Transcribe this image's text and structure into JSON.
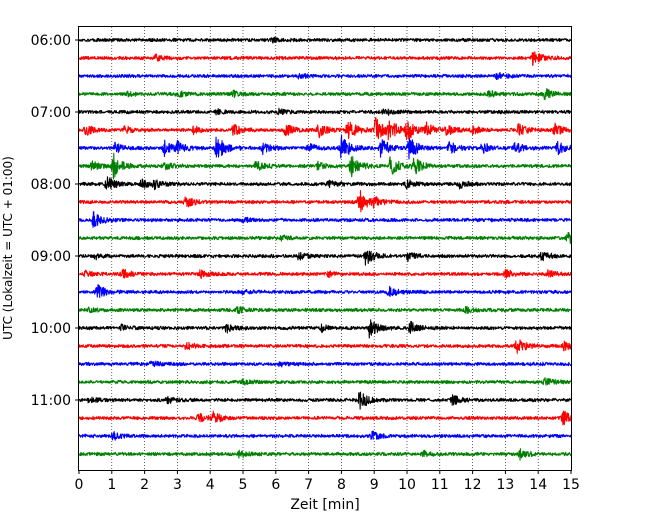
{
  "chart_data": {
    "type": "line",
    "subtype": "seismogram-helicorder",
    "xlabel": "Zeit  [min]",
    "ylabel": "UTC (Lokalzeit = UTC + 01:00)",
    "xlim": [
      0,
      15
    ],
    "x_ticks": [
      "0",
      "1",
      "2",
      "3",
      "4",
      "5",
      "6",
      "7",
      "8",
      "9",
      "10",
      "11",
      "12",
      "13",
      "14",
      "15"
    ],
    "y_ticks": [
      "06:00",
      "07:00",
      "08:00",
      "09:00",
      "10:00",
      "11:00"
    ],
    "grid": "vertical dotted at each minute",
    "trace_interval_minutes": 15,
    "colors": [
      "#000000",
      "#ff0000",
      "#0000ff",
      "#008000"
    ],
    "series": [
      {
        "start": "06:00",
        "color": "#000000",
        "events": [
          {
            "t": 5.9,
            "a": 0.18
          }
        ]
      },
      {
        "start": "06:15",
        "color": "#ff0000",
        "events": [
          {
            "t": 13.85,
            "a": 0.55
          },
          {
            "t": 2.35,
            "a": 0.2
          }
        ]
      },
      {
        "start": "06:30",
        "color": "#0000ff",
        "events": [
          {
            "t": 12.75,
            "a": 0.25
          },
          {
            "t": 6.7,
            "a": 0.15
          }
        ]
      },
      {
        "start": "06:45",
        "color": "#008000",
        "events": [
          {
            "t": 14.2,
            "a": 0.45
          },
          {
            "t": 3.0,
            "a": 0.25
          },
          {
            "t": 4.7,
            "a": 0.25
          },
          {
            "t": 1.5,
            "a": 0.15
          },
          {
            "t": 12.5,
            "a": 0.2
          }
        ]
      },
      {
        "start": "07:00",
        "color": "#000000",
        "events": [
          {
            "t": 9.3,
            "a": 0.25
          },
          {
            "t": 6.1,
            "a": 0.2
          },
          {
            "t": 4.2,
            "a": 0.15
          }
        ]
      },
      {
        "start": "07:15",
        "color": "#ff0000",
        "events": [
          {
            "t": 8.2,
            "a": 0.85
          },
          {
            "t": 9.05,
            "a": 0.85
          },
          {
            "t": 9.45,
            "a": 0.95
          },
          {
            "t": 10.0,
            "a": 0.75
          },
          {
            "t": 7.3,
            "a": 0.55
          },
          {
            "t": 6.3,
            "a": 0.45
          },
          {
            "t": 4.7,
            "a": 0.45
          },
          {
            "t": 0.2,
            "a": 0.4
          },
          {
            "t": 1.4,
            "a": 0.3
          },
          {
            "t": 10.6,
            "a": 0.5
          },
          {
            "t": 11.2,
            "a": 0.35
          },
          {
            "t": 13.4,
            "a": 0.45
          },
          {
            "t": 14.5,
            "a": 0.45
          },
          {
            "t": 3.5,
            "a": 0.25
          },
          {
            "t": 12.0,
            "a": 0.3
          }
        ]
      },
      {
        "start": "07:30",
        "color": "#0000ff",
        "events": [
          {
            "t": 4.2,
            "a": 0.95
          },
          {
            "t": 8.0,
            "a": 1.0
          },
          {
            "t": 10.05,
            "a": 1.0
          },
          {
            "t": 9.2,
            "a": 0.8
          },
          {
            "t": 2.6,
            "a": 0.55
          },
          {
            "t": 3.0,
            "a": 0.45
          },
          {
            "t": 1.1,
            "a": 0.35
          },
          {
            "t": 5.6,
            "a": 0.4
          },
          {
            "t": 7.0,
            "a": 0.35
          },
          {
            "t": 11.3,
            "a": 0.5
          },
          {
            "t": 12.3,
            "a": 0.4
          },
          {
            "t": 13.3,
            "a": 0.45
          },
          {
            "t": 14.6,
            "a": 0.45
          }
        ]
      },
      {
        "start": "07:45",
        "color": "#008000",
        "events": [
          {
            "t": 1.05,
            "a": 0.9
          },
          {
            "t": 8.3,
            "a": 0.8
          },
          {
            "t": 9.5,
            "a": 0.7
          },
          {
            "t": 10.2,
            "a": 0.7
          },
          {
            "t": 2.6,
            "a": 0.3
          },
          {
            "t": 5.4,
            "a": 0.4
          },
          {
            "t": 0.4,
            "a": 0.35
          },
          {
            "t": 7.3,
            "a": 0.3
          }
        ]
      },
      {
        "start": "08:00",
        "color": "#000000",
        "events": [
          {
            "t": 0.85,
            "a": 0.6
          },
          {
            "t": 1.9,
            "a": 0.3
          },
          {
            "t": 2.3,
            "a": 0.3
          },
          {
            "t": 7.6,
            "a": 0.25
          },
          {
            "t": 10.0,
            "a": 0.3
          },
          {
            "t": 11.6,
            "a": 0.3
          }
        ]
      },
      {
        "start": "08:15",
        "color": "#ff0000",
        "events": [
          {
            "t": 8.55,
            "a": 0.9
          },
          {
            "t": 3.25,
            "a": 0.45
          },
          {
            "t": 9.0,
            "a": 0.3
          }
        ]
      },
      {
        "start": "08:30",
        "color": "#0000ff",
        "events": [
          {
            "t": 0.45,
            "a": 0.55
          },
          {
            "t": 5.0,
            "a": 0.15
          }
        ]
      },
      {
        "start": "08:45",
        "color": "#008000",
        "events": [
          {
            "t": 14.9,
            "a": 0.45
          },
          {
            "t": 6.2,
            "a": 0.2
          }
        ]
      },
      {
        "start": "09:00",
        "color": "#000000",
        "events": [
          {
            "t": 8.75,
            "a": 0.7
          },
          {
            "t": 10.0,
            "a": 0.35
          },
          {
            "t": 14.1,
            "a": 0.3
          },
          {
            "t": 0.5,
            "a": 0.2
          },
          {
            "t": 6.7,
            "a": 0.25
          }
        ]
      },
      {
        "start": "09:15",
        "color": "#ff0000",
        "events": [
          {
            "t": 1.3,
            "a": 0.35
          },
          {
            "t": 0.2,
            "a": 0.25
          },
          {
            "t": 3.7,
            "a": 0.25
          },
          {
            "t": 7.6,
            "a": 0.2
          },
          {
            "t": 13.0,
            "a": 0.3
          },
          {
            "t": 14.3,
            "a": 0.25
          }
        ]
      },
      {
        "start": "09:30",
        "color": "#0000ff",
        "events": [
          {
            "t": 0.55,
            "a": 0.55
          },
          {
            "t": 9.45,
            "a": 0.35
          },
          {
            "t": 5.0,
            "a": 0.15
          }
        ]
      },
      {
        "start": "09:45",
        "color": "#008000",
        "events": [
          {
            "t": 4.8,
            "a": 0.25
          },
          {
            "t": 11.8,
            "a": 0.2
          },
          {
            "t": 0.3,
            "a": 0.15
          }
        ]
      },
      {
        "start": "10:00",
        "color": "#000000",
        "events": [
          {
            "t": 8.85,
            "a": 0.75
          },
          {
            "t": 10.1,
            "a": 0.45
          },
          {
            "t": 4.5,
            "a": 0.3
          },
          {
            "t": 1.3,
            "a": 0.2
          },
          {
            "t": 7.4,
            "a": 0.25
          }
        ]
      },
      {
        "start": "10:15",
        "color": "#ff0000",
        "events": [
          {
            "t": 13.35,
            "a": 0.55
          },
          {
            "t": 3.25,
            "a": 0.3
          },
          {
            "t": 14.8,
            "a": 0.35
          }
        ]
      },
      {
        "start": "10:30",
        "color": "#0000ff",
        "events": [
          {
            "t": 2.2,
            "a": 0.2
          },
          {
            "t": 6.1,
            "a": 0.15
          }
        ]
      },
      {
        "start": "10:45",
        "color": "#008000",
        "events": [
          {
            "t": 14.2,
            "a": 0.35
          },
          {
            "t": 5.0,
            "a": 0.2
          }
        ]
      },
      {
        "start": "11:00",
        "color": "#000000",
        "events": [
          {
            "t": 8.55,
            "a": 0.85
          },
          {
            "t": 11.4,
            "a": 0.35
          },
          {
            "t": 0.3,
            "a": 0.2
          },
          {
            "t": 2.7,
            "a": 0.2
          }
        ]
      },
      {
        "start": "11:15",
        "color": "#ff0000",
        "events": [
          {
            "t": 14.75,
            "a": 0.55
          },
          {
            "t": 3.65,
            "a": 0.3
          },
          {
            "t": 4.1,
            "a": 0.4
          }
        ]
      },
      {
        "start": "11:30",
        "color": "#0000ff",
        "events": [
          {
            "t": 1.05,
            "a": 0.3
          },
          {
            "t": 8.95,
            "a": 0.3
          }
        ]
      },
      {
        "start": "11:45",
        "color": "#008000",
        "events": [
          {
            "t": 13.45,
            "a": 0.35
          },
          {
            "t": 4.9,
            "a": 0.3
          },
          {
            "t": 10.5,
            "a": 0.2
          }
        ]
      }
    ]
  }
}
